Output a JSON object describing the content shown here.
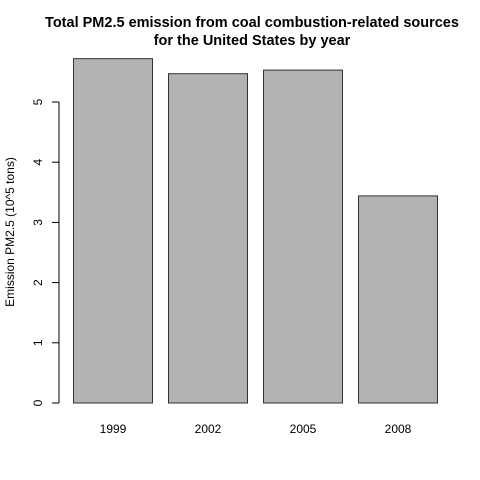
{
  "chart_data": {
    "type": "bar",
    "title_lines": [
      "Total PM2.5 emission from coal combustion-related sources",
      "for the United States by year"
    ],
    "xlabel": "",
    "ylabel": "Emission PM2.5 (10^5 tons)",
    "categories": [
      "1999",
      "2002",
      "2005",
      "2008"
    ],
    "values": [
      5.72,
      5.47,
      5.53,
      3.44
    ],
    "yticks": [
      "0",
      "1",
      "2",
      "3",
      "4",
      "5"
    ],
    "ylim": [
      0,
      5.9
    ],
    "grid": false,
    "bar_color": "#b3b3b3",
    "bar_edge_color": "#333333"
  }
}
